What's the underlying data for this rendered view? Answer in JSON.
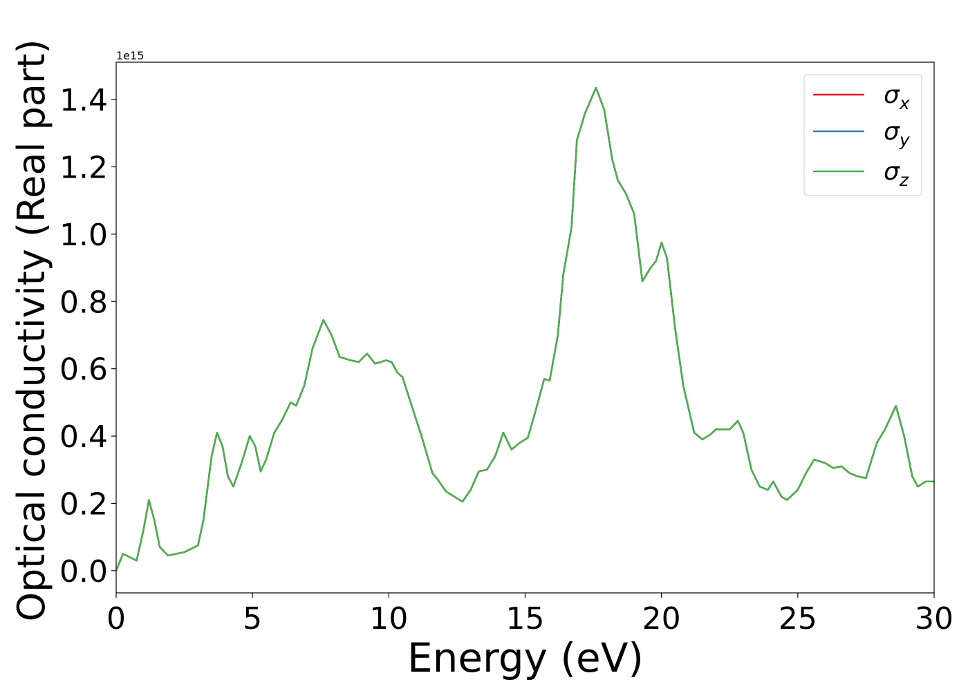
{
  "chart_data": {
    "type": "line",
    "x_label": "Energy (eV)",
    "y_label": "Optical conductivity (Real part)",
    "y_offset_text": "1e15",
    "xlim": [
      0,
      30
    ],
    "xticks": [
      0,
      5,
      10,
      15,
      20,
      25,
      30
    ],
    "ylim": [
      -0.066,
      1.511
    ],
    "yticks": [
      {
        "value": 0,
        "label": "0.0"
      },
      0.2,
      0.4,
      0.6,
      0.8,
      {
        "value": 1,
        "label": "1.0"
      },
      1.2,
      1.4
    ],
    "grid": false,
    "legend": "upper right",
    "x": [
      0,
      0.25,
      0.5,
      0.75,
      1.0,
      1.2,
      1.4,
      1.6,
      1.9,
      2.5,
      3.0,
      3.2,
      3.5,
      3.7,
      3.9,
      4.1,
      4.3,
      4.6,
      4.9,
      5.1,
      5.3,
      5.5,
      5.8,
      6.1,
      6.4,
      6.6,
      6.9,
      7.2,
      7.6,
      7.9,
      8.2,
      8.6,
      8.9,
      9.2,
      9.5,
      9.9,
      10.1,
      10.3,
      10.5,
      10.8,
      11.2,
      11.6,
      11.8,
      12.1,
      12.4,
      12.7,
      13.0,
      13.3,
      13.6,
      13.9,
      14.2,
      14.5,
      14.8,
      15.1,
      15.4,
      15.7,
      15.9,
      16.2,
      16.4,
      16.7,
      16.9,
      17.2,
      17.6,
      17.9,
      18.2,
      18.4,
      18.7,
      19.0,
      19.3,
      19.6,
      19.8,
      20.0,
      20.2,
      20.5,
      20.8,
      21.2,
      21.5,
      21.8,
      22.0,
      22.5,
      22.8,
      23.0,
      23.3,
      23.6,
      23.9,
      24.1,
      24.4,
      24.6,
      25.0,
      25.3,
      25.6,
      26.0,
      26.3,
      26.6,
      26.9,
      27.2,
      27.5,
      27.9,
      28.2,
      28.6,
      28.9,
      29.2,
      29.4,
      29.7,
      30.0
    ],
    "series": [
      {
        "name": "σx",
        "color": "#e41a1c",
        "values": [
          0,
          0.05,
          0.04,
          0.03,
          0.12,
          0.21,
          0.15,
          0.07,
          0.045,
          0.055,
          0.075,
          0.15,
          0.34,
          0.41,
          0.37,
          0.28,
          0.25,
          0.32,
          0.4,
          0.37,
          0.295,
          0.33,
          0.41,
          0.45,
          0.5,
          0.49,
          0.55,
          0.66,
          0.745,
          0.7,
          0.635,
          0.625,
          0.62,
          0.645,
          0.615,
          0.625,
          0.62,
          0.59,
          0.575,
          0.5,
          0.4,
          0.29,
          0.27,
          0.235,
          0.22,
          0.205,
          0.24,
          0.295,
          0.3,
          0.34,
          0.41,
          0.36,
          0.38,
          0.395,
          0.48,
          0.57,
          0.565,
          0.7,
          0.88,
          1.02,
          1.28,
          1.36,
          1.435,
          1.37,
          1.22,
          1.16,
          1.12,
          1.06,
          0.86,
          0.9,
          0.92,
          0.975,
          0.93,
          0.72,
          0.55,
          0.41,
          0.39,
          0.405,
          0.42,
          0.42,
          0.445,
          0.41,
          0.3,
          0.25,
          0.24,
          0.265,
          0.22,
          0.21,
          0.24,
          0.29,
          0.33,
          0.32,
          0.305,
          0.31,
          0.29,
          0.28,
          0.275,
          0.38,
          0.42,
          0.49,
          0.4,
          0.28,
          0.25,
          0.265,
          0.265
        ]
      },
      {
        "name": "σy",
        "color": "#377eb8",
        "values": [
          0,
          0.05,
          0.04,
          0.03,
          0.12,
          0.21,
          0.15,
          0.07,
          0.045,
          0.055,
          0.075,
          0.15,
          0.34,
          0.41,
          0.37,
          0.28,
          0.25,
          0.32,
          0.4,
          0.37,
          0.295,
          0.33,
          0.41,
          0.45,
          0.5,
          0.49,
          0.55,
          0.66,
          0.745,
          0.7,
          0.635,
          0.625,
          0.62,
          0.645,
          0.615,
          0.625,
          0.62,
          0.59,
          0.575,
          0.5,
          0.4,
          0.29,
          0.27,
          0.235,
          0.22,
          0.205,
          0.24,
          0.295,
          0.3,
          0.34,
          0.41,
          0.36,
          0.38,
          0.395,
          0.48,
          0.57,
          0.565,
          0.7,
          0.88,
          1.02,
          1.28,
          1.36,
          1.435,
          1.37,
          1.22,
          1.16,
          1.12,
          1.06,
          0.86,
          0.9,
          0.92,
          0.975,
          0.93,
          0.72,
          0.55,
          0.41,
          0.39,
          0.405,
          0.42,
          0.42,
          0.445,
          0.41,
          0.3,
          0.25,
          0.24,
          0.265,
          0.22,
          0.21,
          0.24,
          0.29,
          0.33,
          0.32,
          0.305,
          0.31,
          0.29,
          0.28,
          0.275,
          0.38,
          0.42,
          0.49,
          0.4,
          0.28,
          0.25,
          0.265,
          0.265
        ]
      },
      {
        "name": "σz",
        "color": "#4daf4a",
        "values": [
          0,
          0.05,
          0.04,
          0.03,
          0.12,
          0.21,
          0.15,
          0.07,
          0.045,
          0.055,
          0.075,
          0.15,
          0.34,
          0.41,
          0.37,
          0.28,
          0.25,
          0.32,
          0.4,
          0.37,
          0.295,
          0.33,
          0.41,
          0.45,
          0.5,
          0.49,
          0.55,
          0.66,
          0.745,
          0.7,
          0.635,
          0.625,
          0.62,
          0.645,
          0.615,
          0.625,
          0.62,
          0.59,
          0.575,
          0.5,
          0.4,
          0.29,
          0.27,
          0.235,
          0.22,
          0.205,
          0.24,
          0.295,
          0.3,
          0.34,
          0.41,
          0.36,
          0.38,
          0.395,
          0.48,
          0.57,
          0.565,
          0.7,
          0.88,
          1.02,
          1.28,
          1.36,
          1.435,
          1.37,
          1.22,
          1.16,
          1.12,
          1.06,
          0.86,
          0.9,
          0.92,
          0.975,
          0.93,
          0.72,
          0.55,
          0.41,
          0.39,
          0.405,
          0.42,
          0.42,
          0.445,
          0.41,
          0.3,
          0.25,
          0.24,
          0.265,
          0.22,
          0.21,
          0.24,
          0.29,
          0.33,
          0.32,
          0.305,
          0.31,
          0.29,
          0.28,
          0.275,
          0.38,
          0.42,
          0.49,
          0.4,
          0.28,
          0.25,
          0.265,
          0.265
        ]
      }
    ]
  }
}
